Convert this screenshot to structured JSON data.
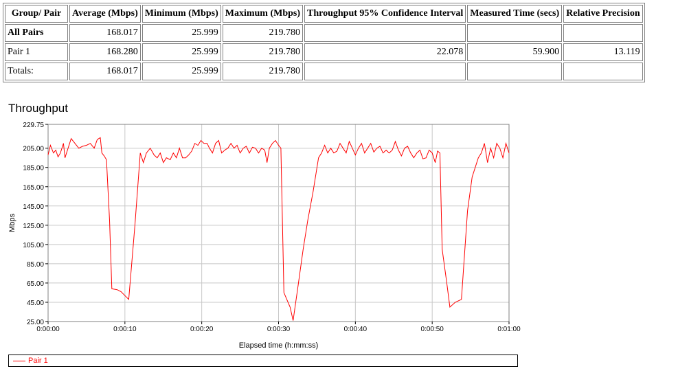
{
  "table": {
    "headers": [
      "Group/ Pair",
      "Average (Mbps)",
      "Minimum (Mbps)",
      "Maximum (Mbps)",
      "Throughput 95% Confidence Interval",
      "Measured Time (secs)",
      "Relative Precision"
    ],
    "rows": [
      {
        "label": "All Pairs",
        "bold": true,
        "values": [
          "168.017",
          "25.999",
          "219.780",
          "",
          "",
          ""
        ]
      },
      {
        "label": "Pair 1",
        "bold": false,
        "values": [
          "168.280",
          "25.999",
          "219.780",
          "22.078",
          "59.900",
          "13.119"
        ]
      },
      {
        "label": "Totals:",
        "bold": false,
        "values": [
          "168.017",
          "25.999",
          "219.780",
          "",
          "",
          ""
        ]
      }
    ]
  },
  "chart_data": {
    "type": "line",
    "title": "Throughput",
    "xlabel": "Elapsed time (h:mm:ss)",
    "ylabel": "Mbps",
    "xlim": [
      0,
      60
    ],
    "ylim": [
      25,
      229.75
    ],
    "y_ticks": [
      "229.75",
      "205.00",
      "185.00",
      "165.00",
      "145.00",
      "125.00",
      "105.00",
      "85.00",
      "65.00",
      "45.00",
      "25.00"
    ],
    "x_ticks": [
      "0:00:00",
      "0:00:10",
      "0:00:20",
      "0:00:30",
      "0:00:40",
      "0:00:50",
      "0:01:00"
    ],
    "grid": true,
    "legend_position": "bottom",
    "series": [
      {
        "name": "Pair 1",
        "color": "#ff0000",
        "points": [
          [
            0,
            198
          ],
          [
            0.3,
            208
          ],
          [
            0.7,
            200
          ],
          [
            1.0,
            203
          ],
          [
            1.3,
            196
          ],
          [
            1.6,
            200
          ],
          [
            2.0,
            210
          ],
          [
            2.2,
            195
          ],
          [
            2.6,
            205
          ],
          [
            3.0,
            215
          ],
          [
            3.5,
            210
          ],
          [
            4.0,
            205
          ],
          [
            4.5,
            207
          ],
          [
            5.0,
            208
          ],
          [
            5.5,
            210
          ],
          [
            6.0,
            205
          ],
          [
            6.4,
            214
          ],
          [
            6.8,
            216
          ],
          [
            7.0,
            200
          ],
          [
            7.3,
            197
          ],
          [
            7.6,
            193
          ],
          [
            8.0,
            130
          ],
          [
            8.3,
            59
          ],
          [
            9.0,
            58
          ],
          [
            9.5,
            56
          ],
          [
            10.0,
            52
          ],
          [
            10.5,
            48
          ],
          [
            11.3,
            125
          ],
          [
            12.0,
            200
          ],
          [
            12.4,
            190
          ],
          [
            12.8,
            200
          ],
          [
            13.3,
            205
          ],
          [
            13.8,
            198
          ],
          [
            14.2,
            195
          ],
          [
            14.6,
            200
          ],
          [
            15.0,
            190
          ],
          [
            15.4,
            195
          ],
          [
            15.9,
            193
          ],
          [
            16.3,
            200
          ],
          [
            16.7,
            195
          ],
          [
            17.1,
            205
          ],
          [
            17.5,
            195
          ],
          [
            17.9,
            195
          ],
          [
            18.3,
            198
          ],
          [
            18.7,
            202
          ],
          [
            19.1,
            210
          ],
          [
            19.5,
            208
          ],
          [
            19.9,
            213
          ],
          [
            20.3,
            210
          ],
          [
            20.7,
            210
          ],
          [
            21.0,
            205
          ],
          [
            21.4,
            200
          ],
          [
            21.8,
            210
          ],
          [
            22.2,
            213
          ],
          [
            22.6,
            200
          ],
          [
            23.0,
            203
          ],
          [
            23.4,
            205
          ],
          [
            23.8,
            210
          ],
          [
            24.2,
            205
          ],
          [
            24.6,
            208
          ],
          [
            25.0,
            200
          ],
          [
            25.4,
            205
          ],
          [
            25.8,
            207
          ],
          [
            26.2,
            200
          ],
          [
            26.6,
            206
          ],
          [
            27.0,
            205
          ],
          [
            27.4,
            200
          ],
          [
            27.8,
            205
          ],
          [
            28.2,
            203
          ],
          [
            28.5,
            190
          ],
          [
            28.8,
            205
          ],
          [
            29.2,
            210
          ],
          [
            29.6,
            213
          ],
          [
            30.0,
            208
          ],
          [
            30.3,
            205
          ],
          [
            30.5,
            130
          ],
          [
            30.7,
            55
          ],
          [
            31.5,
            40
          ],
          [
            31.9,
            26
          ],
          [
            32.5,
            60
          ],
          [
            33.2,
            100
          ],
          [
            33.8,
            130
          ],
          [
            34.5,
            160
          ],
          [
            35.2,
            195
          ],
          [
            35.6,
            200
          ],
          [
            36.0,
            208
          ],
          [
            36.4,
            200
          ],
          [
            36.8,
            205
          ],
          [
            37.2,
            200
          ],
          [
            37.6,
            202
          ],
          [
            38.0,
            210
          ],
          [
            38.4,
            205
          ],
          [
            38.8,
            200
          ],
          [
            39.2,
            212
          ],
          [
            39.6,
            205
          ],
          [
            40.0,
            198
          ],
          [
            40.4,
            205
          ],
          [
            40.8,
            210
          ],
          [
            41.2,
            200
          ],
          [
            41.6,
            205
          ],
          [
            42.0,
            210
          ],
          [
            42.4,
            201
          ],
          [
            42.8,
            205
          ],
          [
            43.2,
            207
          ],
          [
            43.6,
            200
          ],
          [
            44.0,
            203
          ],
          [
            44.4,
            200
          ],
          [
            44.8,
            203
          ],
          [
            45.2,
            212
          ],
          [
            45.6,
            203
          ],
          [
            46.0,
            197
          ],
          [
            46.4,
            205
          ],
          [
            46.8,
            207
          ],
          [
            47.2,
            200
          ],
          [
            47.6,
            195
          ],
          [
            48.0,
            200
          ],
          [
            48.4,
            203
          ],
          [
            48.8,
            194
          ],
          [
            49.2,
            195
          ],
          [
            49.6,
            203
          ],
          [
            50.0,
            200
          ],
          [
            50.4,
            190
          ],
          [
            50.7,
            202
          ],
          [
            51.0,
            200
          ],
          [
            51.3,
            100
          ],
          [
            51.9,
            65
          ],
          [
            52.3,
            40
          ],
          [
            53.0,
            45
          ],
          [
            53.8,
            48
          ],
          [
            54.6,
            140
          ],
          [
            55.2,
            175
          ],
          [
            55.6,
            185
          ],
          [
            56.0,
            195
          ],
          [
            56.4,
            200
          ],
          [
            56.8,
            210
          ],
          [
            57.2,
            190
          ],
          [
            57.6,
            205
          ],
          [
            58.0,
            195
          ],
          [
            58.4,
            210
          ],
          [
            58.8,
            205
          ],
          [
            59.2,
            195
          ],
          [
            59.6,
            210
          ],
          [
            60.0,
            200
          ]
        ]
      }
    ]
  }
}
